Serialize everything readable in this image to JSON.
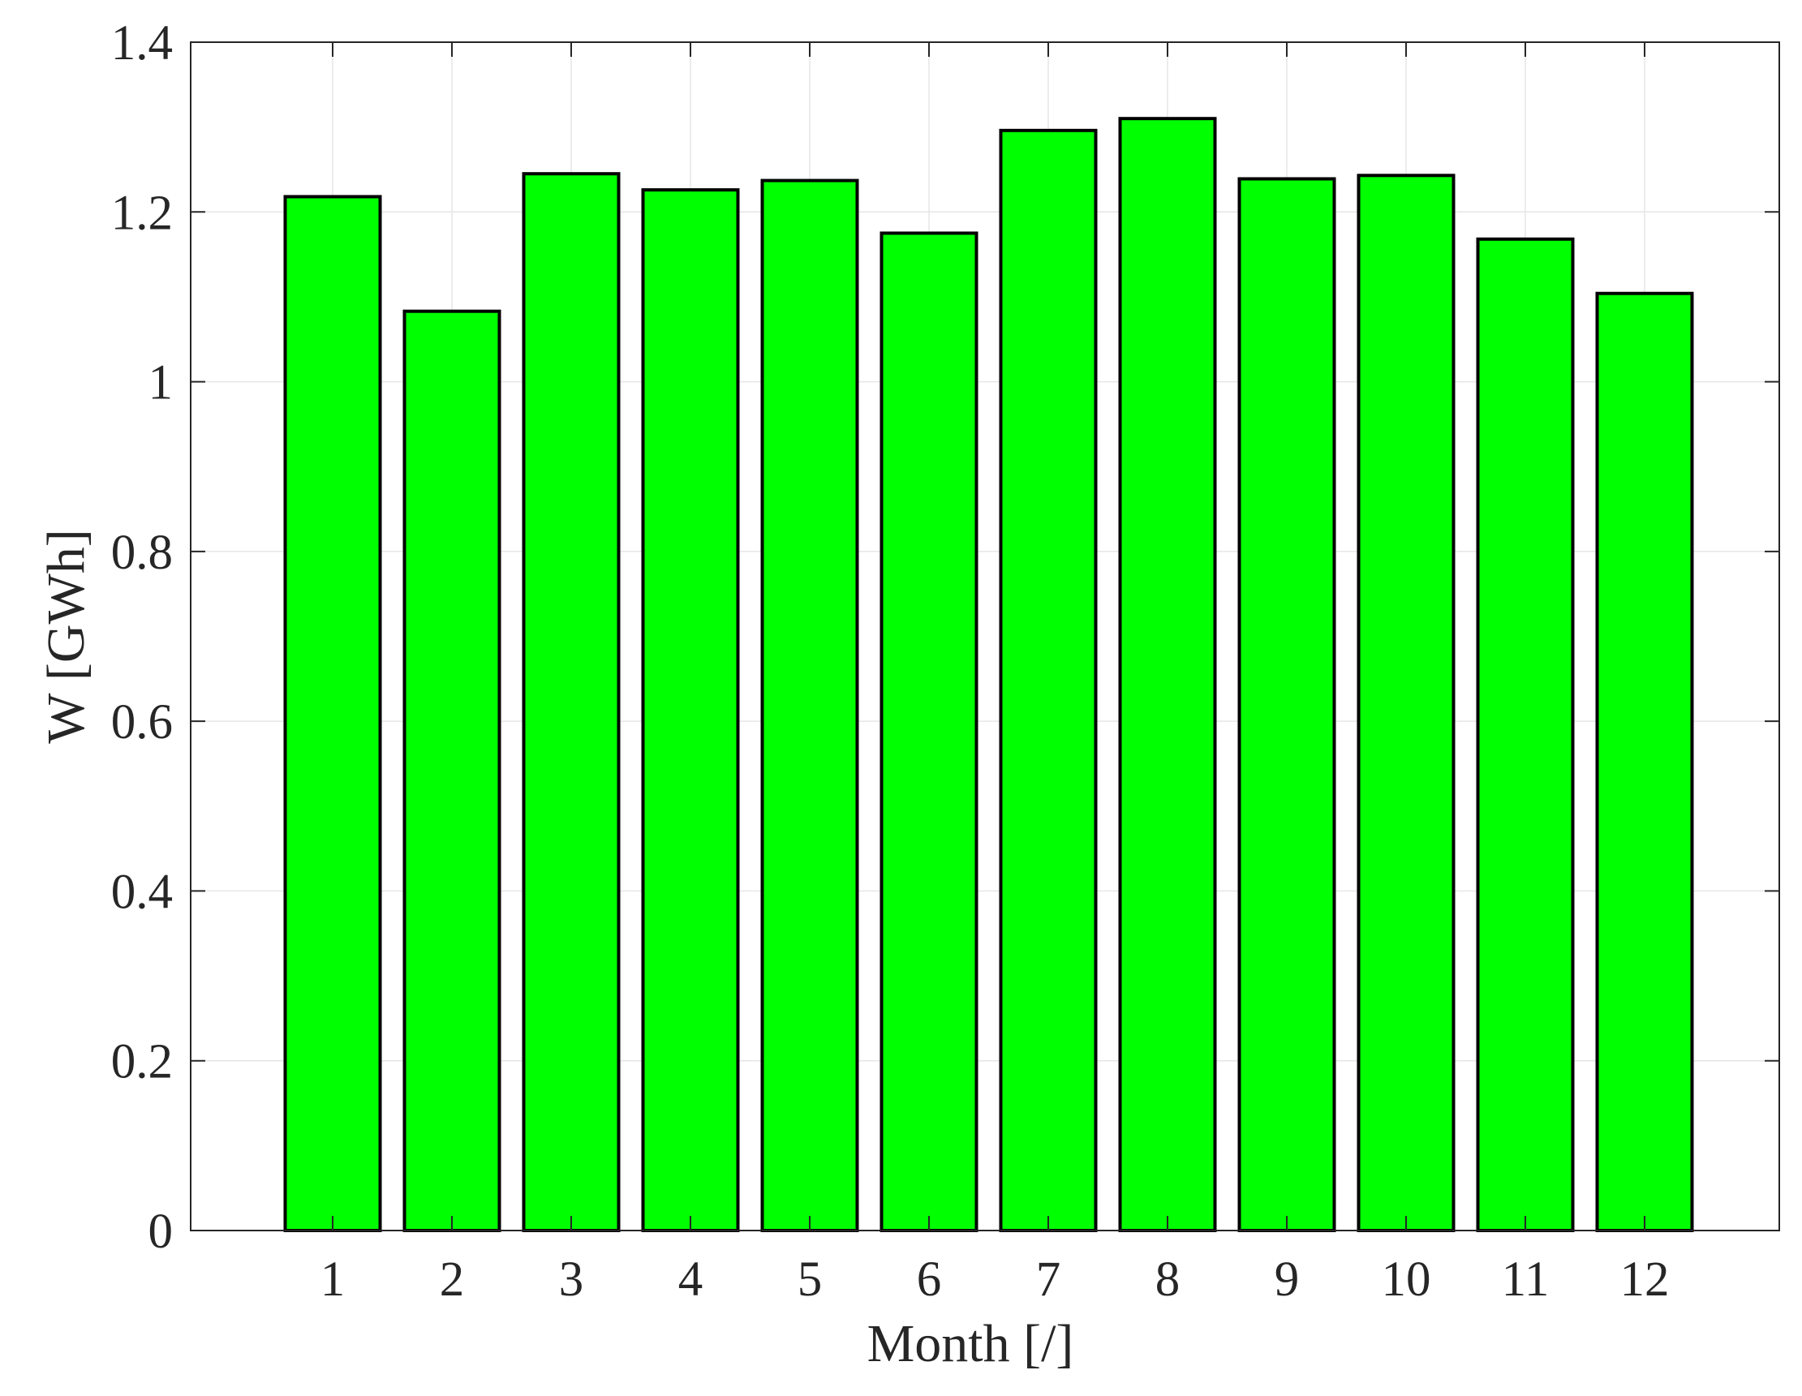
{
  "chart_data": {
    "type": "bar",
    "categories": [
      "1",
      "2",
      "3",
      "4",
      "5",
      "6",
      "7",
      "8",
      "9",
      "10",
      "11",
      "12"
    ],
    "values": [
      1.218,
      1.083,
      1.245,
      1.226,
      1.237,
      1.175,
      1.296,
      1.31,
      1.239,
      1.243,
      1.168,
      1.104
    ],
    "title": "",
    "xlabel": "Month [/]",
    "ylabel": "W [GWh]",
    "ylim": [
      0,
      1.4
    ],
    "yticks": [
      "0",
      "0.2",
      "0.4",
      "0.6",
      "0.8",
      "1",
      "1.2",
      "1.4"
    ],
    "grid": true,
    "colors": {
      "bar_fill": "#00ff00",
      "bar_edge": "#000000",
      "grid": "#e6e6e6",
      "axis": "#262626"
    }
  }
}
